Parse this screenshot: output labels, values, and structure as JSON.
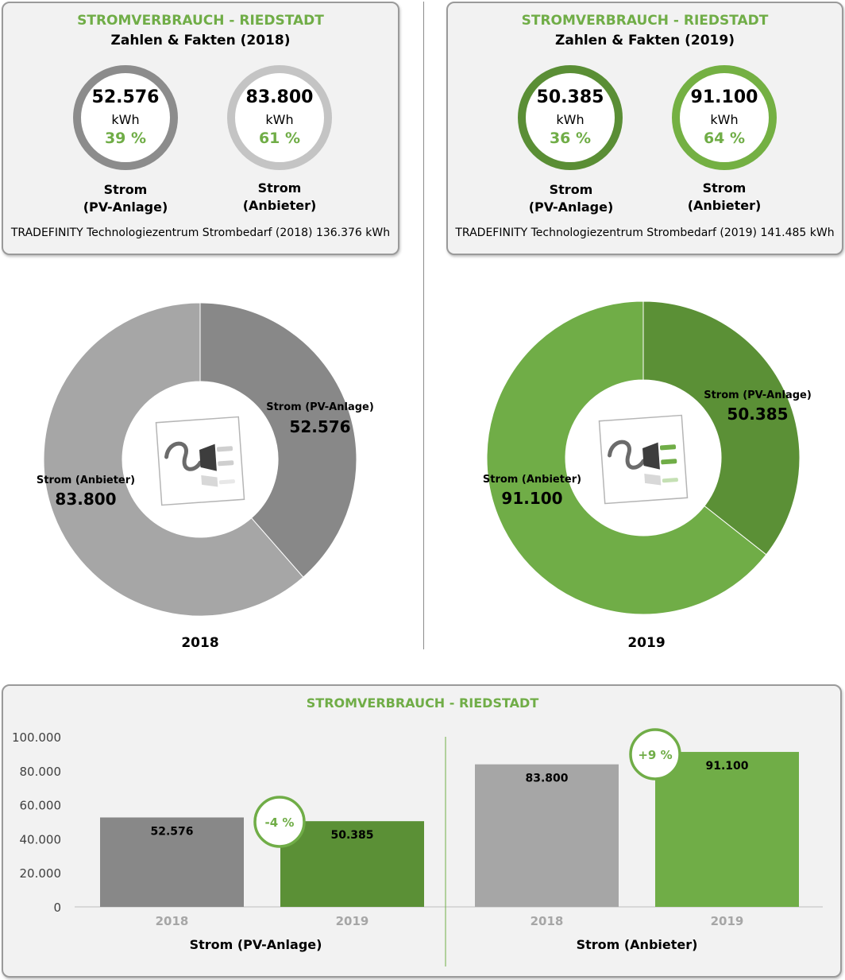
{
  "cards": [
    {
      "title": "STROMVERBRAUCH - RIEDSTADT",
      "subtitle": "Zahlen & Fakten (2018)",
      "rings": [
        {
          "value": "52.576",
          "unit": "kWh",
          "pct": "39 %",
          "label1": "Strom",
          "label2": "(PV-Anlage)",
          "ring_color": "#8c8c8c"
        },
        {
          "value": "83.800",
          "unit": "kWh",
          "pct": "61 %",
          "label1": "Strom",
          "label2": "(Anbieter)",
          "ring_color": "#c4c4c4"
        }
      ],
      "footer": "TRADEFINITY Technologiezentrum Strombedarf (2018) 136.376 kWh"
    },
    {
      "title": "STROMVERBRAUCH - RIEDSTADT",
      "subtitle": "Zahlen & Fakten (2019)",
      "rings": [
        {
          "value": "50.385",
          "unit": "kWh",
          "pct": "36 %",
          "label1": "Strom",
          "label2": "(PV-Anlage)",
          "ring_color": "#5a8e35"
        },
        {
          "value": "91.100",
          "unit": "kWh",
          "pct": "64 %",
          "label1": "Strom",
          "label2": "(Anbieter)",
          "ring_color": "#74b043"
        }
      ],
      "footer": "TRADEFINITY Technologiezentrum Strombedarf (2019) 141.485 kWh"
    }
  ],
  "colors": {
    "title_green": "#70ad47",
    "pct_green": "#70ad47",
    "grey_dark": "#8a8a8a",
    "grey_light": "#a6a6a6",
    "green_dark": "#5b9036",
    "green_light": "#70ad47"
  },
  "icons": [
    "plug-icon"
  ],
  "chart_data": [
    {
      "type": "pie",
      "subtype": "donut",
      "title": "2018",
      "labels": [
        "Strom (PV-Anlage)",
        "Strom (Anbieter)"
      ],
      "values": [
        52576,
        83800
      ],
      "value_labels": [
        "52.576",
        "83.800"
      ],
      "colors": [
        "#888888",
        "#a6a6a6"
      ]
    },
    {
      "type": "pie",
      "subtype": "donut",
      "title": "2019",
      "labels": [
        "Strom (PV-Anlage)",
        "Strom (Anbieter)"
      ],
      "values": [
        50385,
        91100
      ],
      "value_labels": [
        "50.385",
        "91.100"
      ],
      "colors": [
        "#5b9036",
        "#70ad47"
      ]
    },
    {
      "type": "bar",
      "title": "STROMVERBRAUCH - RIEDSTADT",
      "ylim": [
        0,
        100000
      ],
      "yticks": [
        "0",
        "20.000",
        "40.000",
        "60.000",
        "80.000",
        "100.000"
      ],
      "groups": [
        {
          "name": "Strom (PV-Anlage)",
          "categories": [
            "2018",
            "2019"
          ],
          "values": [
            52576,
            50385
          ],
          "value_labels": [
            "52.576",
            "50.385"
          ],
          "colors": [
            "#888888",
            "#5b9036"
          ],
          "change": "-4 %"
        },
        {
          "name": "Strom (Anbieter)",
          "categories": [
            "2018",
            "2019"
          ],
          "values": [
            83800,
            91100
          ],
          "value_labels": [
            "83.800",
            "91.100"
          ],
          "colors": [
            "#a6a6a6",
            "#70ad47"
          ],
          "change": "+9 %"
        }
      ],
      "grid": false
    }
  ]
}
